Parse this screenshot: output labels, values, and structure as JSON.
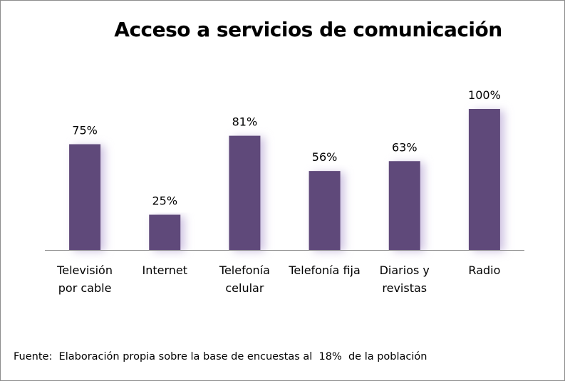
{
  "chart_data": {
    "type": "bar",
    "title": "Acceso a servicios de comunicación",
    "categories": [
      [
        "Televisión",
        "por cable"
      ],
      [
        "Internet"
      ],
      [
        "Telefonía",
        "celular"
      ],
      [
        "Telefonía fija"
      ],
      [
        "Diarios y",
        "revistas"
      ],
      [
        "Radio"
      ]
    ],
    "values": [
      75,
      25,
      81,
      56,
      63,
      100
    ],
    "data_labels": [
      "75%",
      "25%",
      "81%",
      "56%",
      "63%",
      "100%"
    ],
    "ylim": [
      0,
      100
    ],
    "grid": false,
    "bar_color": "#5f497a",
    "shadow_color": "#cfc3e2",
    "source": "Fuente:  Elaboración propia sobre la base de encuestas al  18%  de la población"
  }
}
